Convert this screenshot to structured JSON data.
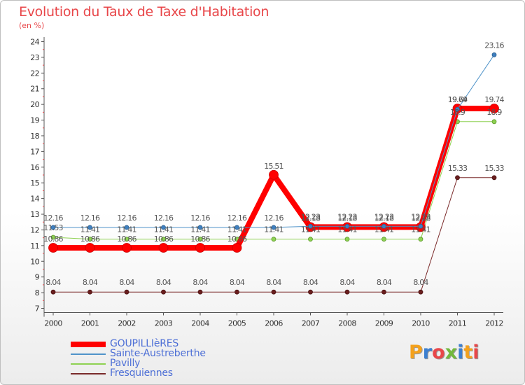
{
  "chart_data": {
    "type": "line",
    "title": "Evolution du Taux de Taxe d'Habitation",
    "subtitle": "(en %)",
    "xlabel": "",
    "ylabel": "",
    "x": [
      "2000",
      "2001",
      "2002",
      "2003",
      "2004",
      "2005",
      "2006",
      "2007",
      "2008",
      "2009",
      "2010",
      "2011",
      "2012"
    ],
    "ylim": [
      7,
      24
    ],
    "yticks": [
      "7",
      "8",
      "9",
      "10",
      "11",
      "12",
      "13",
      "14",
      "15",
      "16",
      "17",
      "18",
      "19",
      "20",
      "21",
      "22",
      "23",
      "24"
    ],
    "grid": false,
    "legend": "bottom-left",
    "series": [
      {
        "name": "GOUPILLIèRES",
        "color": "#ff0000",
        "values": [
          10.86,
          10.86,
          10.86,
          10.86,
          10.86,
          10.86,
          15.51,
          12.18,
          12.18,
          12.18,
          12.18,
          19.74,
          19.74
        ],
        "labels": [
          "10.86",
          "10.86",
          "10.86",
          "10.86",
          "10.86",
          "10.86",
          "15.51",
          "12.18",
          "12.18",
          "12.18",
          "12.18",
          "19.74",
          "19.74"
        ]
      },
      {
        "name": "Sainte-Austreberthe",
        "color": "#4f93c9",
        "values": [
          12.16,
          12.16,
          12.16,
          12.16,
          12.16,
          12.16,
          12.16,
          12.23,
          12.23,
          12.23,
          12.23,
          19.69,
          23.16
        ],
        "labels": [
          "12.16",
          "12.16",
          "12.16",
          "12.16",
          "12.16",
          "12.16",
          "12.16",
          "12.23",
          "12.23",
          "12.23",
          "12.23",
          "19.69",
          "23.16"
        ]
      },
      {
        "name": "Pavilly",
        "color": "#8ed152",
        "values": [
          11.53,
          11.41,
          11.41,
          11.41,
          11.41,
          11.41,
          11.41,
          11.41,
          11.41,
          11.41,
          11.41,
          18.9,
          18.9
        ],
        "labels": [
          "11.53",
          "11.41",
          "11.41",
          "11.41",
          "11.41",
          "11.41",
          "11.41",
          "11.41",
          "11.41",
          "11.41",
          "11.41",
          "18.9",
          "18.9"
        ]
      },
      {
        "name": "Fresquiennes",
        "color": "#7a2a2a",
        "values": [
          8.04,
          8.04,
          8.04,
          8.04,
          8.04,
          8.04,
          8.04,
          8.04,
          8.04,
          8.04,
          8.04,
          15.33,
          15.33
        ],
        "labels": [
          "8.04",
          "8.04",
          "8.04",
          "8.04",
          "8.04",
          "8.04",
          "8.04",
          "8.04",
          "8.04",
          "8.04",
          "8.04",
          "15.33",
          "15.33"
        ]
      }
    ]
  },
  "logo": {
    "letters": [
      "P",
      "r",
      "o",
      "x",
      "i",
      "t",
      "i"
    ],
    "colors": [
      "#f4a11c",
      "#3b7fd0",
      "#e8474a",
      "#72b83c",
      "#3b7fd0",
      "#f4a11c",
      "#e8474a"
    ]
  }
}
